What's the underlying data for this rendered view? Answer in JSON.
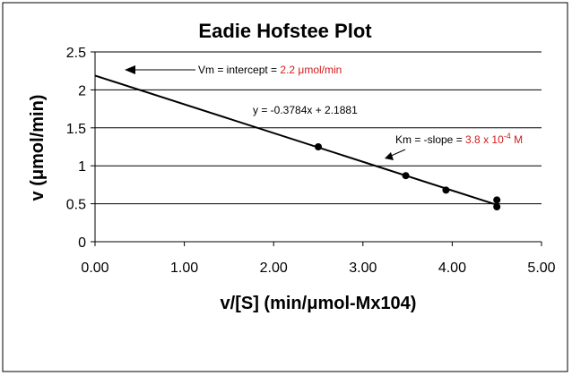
{
  "chart_data": {
    "type": "scatter",
    "title": "Eadie Hofstee Plot",
    "xlabel": "v/[S] (min/μmol-Mx104)",
    "ylabel": "v (μmol/min)",
    "xlim": [
      0,
      5
    ],
    "ylim": [
      0,
      2.5
    ],
    "x_ticks": [
      "0.00",
      "1.00",
      "2.00",
      "3.00",
      "4.00",
      "5.00"
    ],
    "y_ticks": [
      "0",
      "0.5",
      "1",
      "1.5",
      "2",
      "2.5"
    ],
    "grid": "horizontal",
    "legend": "none",
    "points": [
      {
        "x": 2.5,
        "y": 1.25
      },
      {
        "x": 3.48,
        "y": 0.87
      },
      {
        "x": 3.93,
        "y": 0.68
      },
      {
        "x": 4.5,
        "y": 0.55
      },
      {
        "x": 4.5,
        "y": 0.46
      }
    ],
    "trendline": {
      "slope": -0.3784,
      "intercept": 2.1881,
      "x_range": [
        0,
        4.5
      ],
      "equation": "y = -0.3784x + 2.1881"
    },
    "annotations": {
      "vm_text": "Vm = intercept = ",
      "vm_value": "2.2 μmol/min",
      "km_text": "Km = -slope = ",
      "km_value_base": "3.8 x 10",
      "km_value_exp": "-4",
      "km_value_unit": " M"
    },
    "colors": {
      "line": "#000000",
      "point": "#000000",
      "grid": "#000000",
      "highlight_text": "#d21c1c"
    }
  }
}
